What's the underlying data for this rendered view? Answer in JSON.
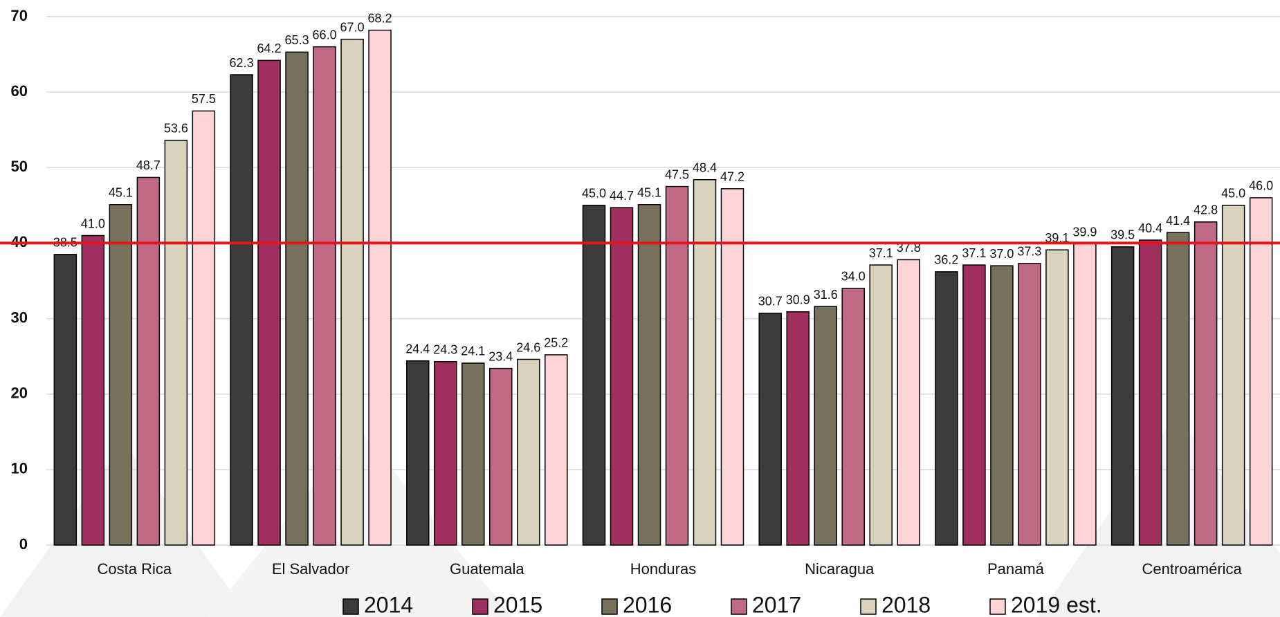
{
  "chart_data": {
    "type": "bar",
    "categories": [
      "Costa Rica",
      "El Salvador",
      "Guatemala",
      "Honduras",
      "Nicaragua",
      "Panamá",
      "Centroamérica"
    ],
    "series": [
      {
        "name": "2014",
        "color": "#3b3b3b",
        "values": [
          38.5,
          62.3,
          24.4,
          45.0,
          30.7,
          36.2,
          39.5
        ],
        "value_labels": [
          "38.5",
          "62.3",
          "24.4",
          "45.0",
          "30.7",
          "36.2",
          "39.5"
        ]
      },
      {
        "name": "2015",
        "color": "#9e2f5e",
        "values": [
          41.0,
          64.2,
          24.3,
          44.7,
          30.9,
          37.1,
          40.4
        ],
        "value_labels": [
          "41.0",
          "64.2",
          "24.3",
          "44.7",
          "30.9",
          "37.1",
          "40.4"
        ]
      },
      {
        "name": "2016",
        "color": "#77705a",
        "values": [
          45.1,
          65.3,
          24.1,
          45.1,
          31.6,
          37.0,
          41.4
        ],
        "value_labels": [
          "45.1",
          "65.3",
          "24.1",
          "45.1",
          "31.6",
          "37.0",
          "41.4"
        ]
      },
      {
        "name": "2017",
        "color": "#c06a86",
        "values": [
          48.7,
          66.0,
          23.4,
          47.5,
          34.0,
          37.3,
          42.8
        ],
        "value_labels": [
          "48.7",
          "66.0",
          "23.4",
          "47.5",
          "34.0",
          "37.3",
          "42.8"
        ]
      },
      {
        "name": "2018",
        "color": "#d9d3bd",
        "values": [
          53.6,
          67.0,
          24.6,
          48.4,
          37.1,
          39.1,
          45.0
        ],
        "value_labels": [
          "53.6",
          "67.0",
          "24.6",
          "48.4",
          "37.1",
          "39.1",
          "45.0"
        ]
      },
      {
        "name": "2019 est.",
        "color": "#fdd5d6",
        "values": [
          57.5,
          68.2,
          25.2,
          47.2,
          37.8,
          39.9,
          46.0
        ],
        "value_labels": [
          "57.5",
          "68.2",
          "25.2",
          "47.2",
          "37.8",
          "39.9",
          "46.0"
        ]
      }
    ],
    "ylim": [
      0,
      70
    ],
    "yticks": [
      0,
      10,
      20,
      30,
      40,
      50,
      60,
      70
    ],
    "grid": true,
    "reference_line": {
      "value": 40,
      "color": "#e8141b"
    },
    "legend": "bottom"
  }
}
